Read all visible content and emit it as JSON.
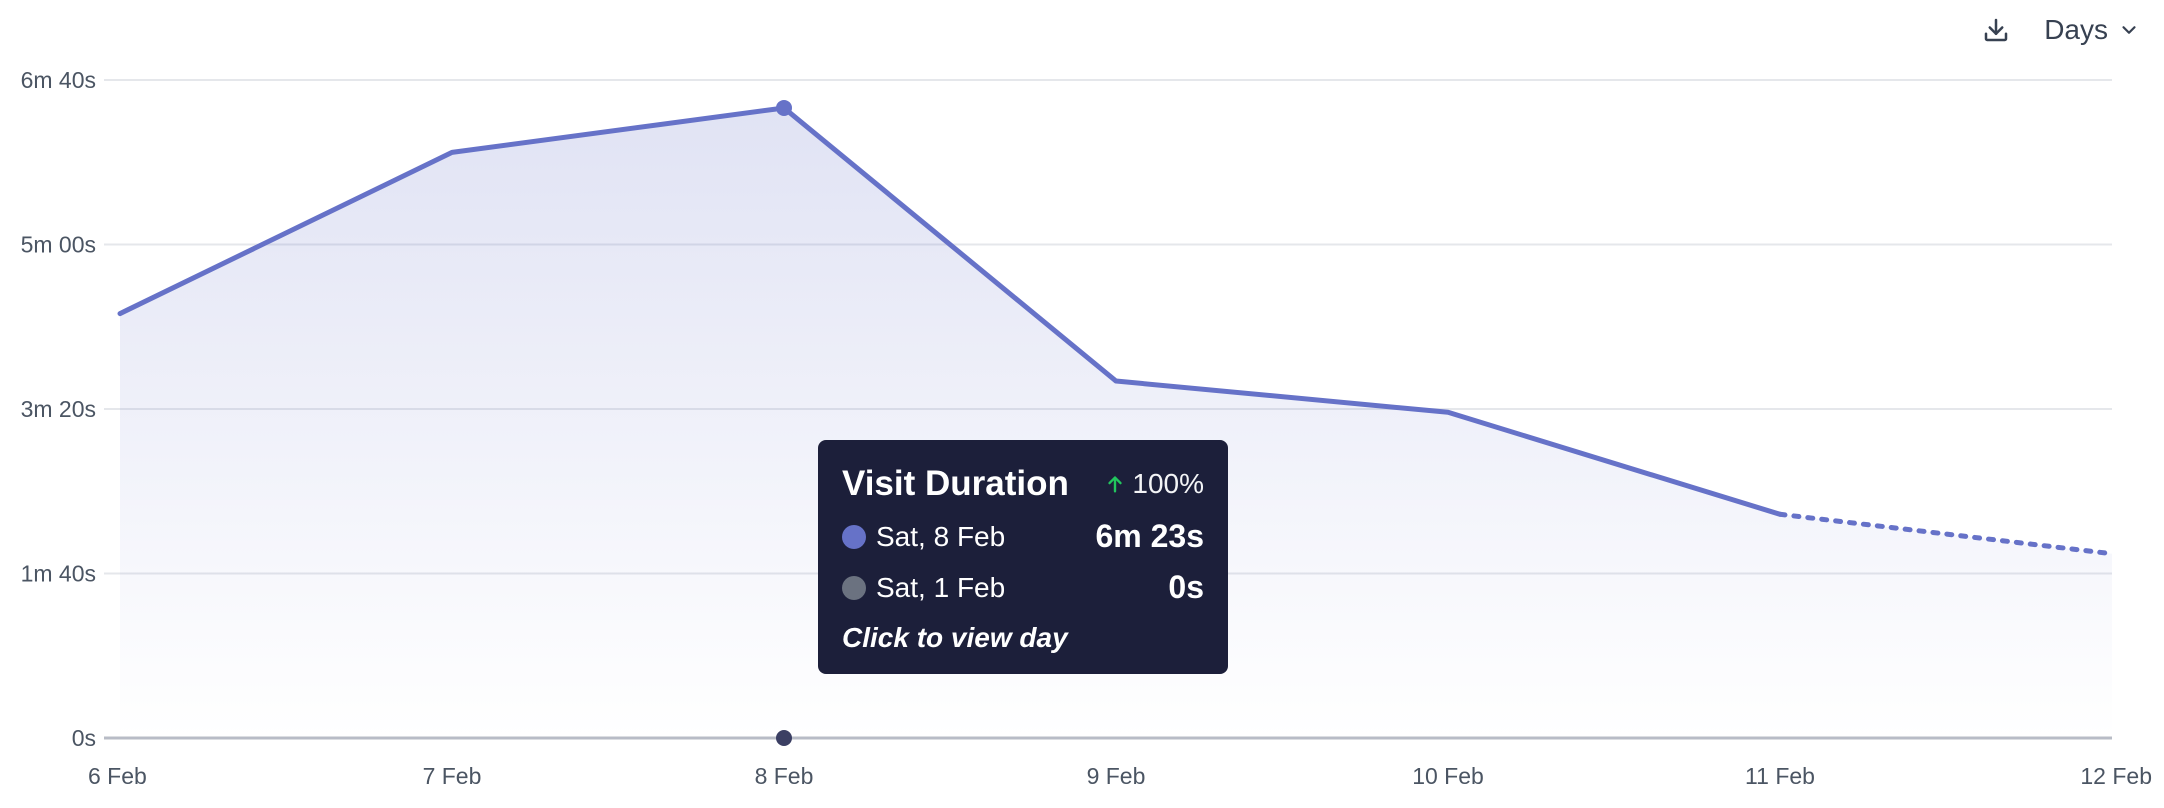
{
  "controls": {
    "download_icon": "download-icon",
    "interval_label": "Days",
    "interval_icon": "chevron-down-icon"
  },
  "colors": {
    "main_line": "#6672c8",
    "comparison_dot": "#3b3f63",
    "tooltip_bg": "#1c1f3a",
    "positive_change": "#22c55e",
    "comparison_series": "#6b7280"
  },
  "tooltip": {
    "title": "Visit Duration",
    "change_icon": "arrow-up-icon",
    "change": "100%",
    "rows": [
      {
        "label": "Sat, 8 Feb",
        "value": "6m 23s"
      },
      {
        "label": "Sat, 1 Feb",
        "value": "0s"
      }
    ],
    "footer": "Click to view day"
  },
  "chart_data": {
    "type": "line",
    "x": [
      "6 Feb",
      "7 Feb",
      "8 Feb",
      "9 Feb",
      "10 Feb",
      "11 Feb",
      "12 Feb"
    ],
    "y_seconds": [
      258,
      356,
      383,
      217,
      198,
      136,
      112
    ],
    "y_ticks": [
      {
        "value": 0,
        "label": "0s"
      },
      {
        "value": 100,
        "label": "1m 40s"
      },
      {
        "value": 200,
        "label": "3m 20s"
      },
      {
        "value": 300,
        "label": "5m 00s"
      },
      {
        "value": 400,
        "label": "6m 40s"
      }
    ],
    "ylim": [
      0,
      400
    ],
    "dashed_from_index": 5,
    "highlight_index": 2,
    "comparison_point": {
      "x": "8 Feb",
      "y_seconds": 0
    },
    "grid": true,
    "area_fill": true
  }
}
